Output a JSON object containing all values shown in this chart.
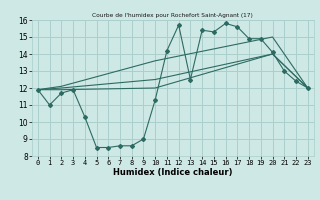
{
  "title": "Courbe de l'humidex pour Rochefort Saint-Agnant (17)",
  "xlabel": "Humidex (Indice chaleur)",
  "bg_color": "#cde8e5",
  "grid_color": "#aacfcc",
  "line_color": "#2d6b62",
  "xlim": [
    -0.5,
    23.5
  ],
  "ylim": [
    8,
    16
  ],
  "yticks": [
    8,
    9,
    10,
    11,
    12,
    13,
    14,
    15,
    16
  ],
  "xticks": [
    0,
    1,
    2,
    3,
    4,
    5,
    6,
    7,
    8,
    9,
    10,
    11,
    12,
    13,
    14,
    15,
    16,
    17,
    18,
    19,
    20,
    21,
    22,
    23
  ],
  "series1_x": [
    0,
    1,
    2,
    3,
    4,
    5,
    6,
    7,
    8,
    9,
    10,
    11,
    12,
    13,
    14,
    15,
    16,
    17,
    18,
    19,
    20,
    21,
    22,
    23
  ],
  "series1_y": [
    11.9,
    11.0,
    11.7,
    11.9,
    10.3,
    8.5,
    8.5,
    8.6,
    8.6,
    9.0,
    11.3,
    14.2,
    15.7,
    12.5,
    15.4,
    15.3,
    15.8,
    15.6,
    14.9,
    14.9,
    14.1,
    13.0,
    12.4,
    12.0
  ],
  "series2_x": [
    0,
    2,
    10,
    20,
    23
  ],
  "series2_y": [
    11.9,
    11.9,
    12.0,
    14.0,
    12.0
  ],
  "series3_x": [
    0,
    2,
    10,
    20,
    23
  ],
  "series3_y": [
    11.9,
    12.0,
    12.5,
    14.0,
    12.0
  ],
  "series4_x": [
    0,
    2,
    10,
    20,
    23
  ],
  "series4_y": [
    11.9,
    12.1,
    13.6,
    15.0,
    12.0
  ]
}
